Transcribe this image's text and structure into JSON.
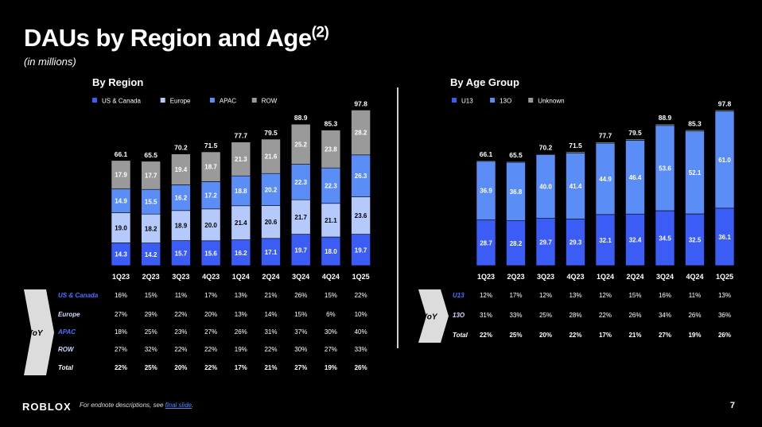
{
  "page": {
    "title": "DAUs by Region and Age",
    "title_sup": "(2)",
    "subtitle": "(in millions)",
    "logo": "ROBLOX",
    "footnote_prefix": "For endnote descriptions, see ",
    "footnote_link": "final slide",
    "footnote_suffix": ".",
    "page_number": "7"
  },
  "colors": {
    "background": "#000000",
    "blue_dark": "#3b5cf5",
    "blue_mid": "#5b8df7",
    "blue_light": "#b6c9fb",
    "gray": "#9a9a9a",
    "yoy_label_blue": "#4a72ff",
    "chevron": "#dcdcdc"
  },
  "chart_data": [
    {
      "type": "bar",
      "stacked": true,
      "title": "By Region",
      "categories": [
        "1Q23",
        "2Q23",
        "3Q23",
        "4Q23",
        "1Q24",
        "2Q24",
        "3Q24",
        "4Q24",
        "1Q25"
      ],
      "series": [
        {
          "name": "US & Canada",
          "color": "#3b5cf5",
          "values": [
            14.3,
            14.2,
            15.7,
            15.6,
            16.2,
            17.1,
            19.7,
            18.0,
            19.7
          ]
        },
        {
          "name": "Europe",
          "color": "#b6c9fb",
          "values": [
            19.0,
            18.2,
            18.9,
            20.0,
            21.4,
            20.6,
            21.7,
            21.1,
            23.6
          ]
        },
        {
          "name": "APAC",
          "color": "#5b8df7",
          "values": [
            14.9,
            15.5,
            16.2,
            17.2,
            18.8,
            20.2,
            22.3,
            22.3,
            26.3
          ]
        },
        {
          "name": "ROW",
          "color": "#9a9a9a",
          "values": [
            17.9,
            17.7,
            19.4,
            18.7,
            21.3,
            21.6,
            25.2,
            23.8,
            28.2
          ]
        }
      ],
      "totals": [
        66.1,
        65.5,
        70.2,
        71.5,
        77.7,
        79.5,
        88.9,
        85.3,
        97.8
      ],
      "legend_position": "top-left",
      "yoy": {
        "label": "YoY",
        "rows": [
          {
            "name": "US & Canada",
            "values": [
              "16%",
              "15%",
              "11%",
              "17%",
              "13%",
              "21%",
              "26%",
              "15%",
              "22%"
            ]
          },
          {
            "name": "Europe",
            "values": [
              "27%",
              "29%",
              "22%",
              "20%",
              "13%",
              "14%",
              "15%",
              "6%",
              "10%"
            ]
          },
          {
            "name": "APAC",
            "values": [
              "18%",
              "25%",
              "23%",
              "27%",
              "26%",
              "31%",
              "37%",
              "30%",
              "40%"
            ]
          },
          {
            "name": "ROW",
            "values": [
              "27%",
              "32%",
              "22%",
              "22%",
              "19%",
              "22%",
              "30%",
              "27%",
              "33%"
            ]
          },
          {
            "name": "Total",
            "values": [
              "22%",
              "25%",
              "20%",
              "22%",
              "17%",
              "21%",
              "27%",
              "19%",
              "26%"
            ]
          }
        ]
      }
    },
    {
      "type": "bar",
      "stacked": true,
      "title": "By Age Group",
      "categories": [
        "1Q23",
        "2Q23",
        "3Q23",
        "4Q23",
        "1Q24",
        "2Q24",
        "3Q24",
        "4Q24",
        "1Q25"
      ],
      "series": [
        {
          "name": "U13",
          "color": "#3b5cf5",
          "values": [
            28.7,
            28.2,
            29.7,
            29.3,
            32.1,
            32.4,
            34.5,
            32.5,
            36.1
          ]
        },
        {
          "name": "13O",
          "color": "#5b8df7",
          "values": [
            36.9,
            36.8,
            40.0,
            41.4,
            44.9,
            46.4,
            53.6,
            52.1,
            61.0
          ]
        },
        {
          "name": "Unknown",
          "color": "#9a9a9a",
          "values": [
            0.5,
            0.5,
            0.5,
            0.8,
            0.7,
            0.7,
            0.8,
            0.7,
            0.7
          ]
        }
      ],
      "totals": [
        66.1,
        65.5,
        70.2,
        71.5,
        77.7,
        79.5,
        88.9,
        85.3,
        97.8
      ],
      "legend_position": "top-left",
      "yoy": {
        "label": "YoY",
        "rows": [
          {
            "name": "U13",
            "values": [
              "12%",
              "17%",
              "12%",
              "13%",
              "12%",
              "15%",
              "16%",
              "11%",
              "13%"
            ]
          },
          {
            "name": "13O",
            "values": [
              "31%",
              "33%",
              "25%",
              "28%",
              "22%",
              "26%",
              "34%",
              "26%",
              "36%"
            ]
          },
          {
            "name": "Total",
            "values": [
              "22%",
              "25%",
              "20%",
              "22%",
              "17%",
              "21%",
              "27%",
              "19%",
              "26%"
            ]
          }
        ]
      }
    }
  ]
}
